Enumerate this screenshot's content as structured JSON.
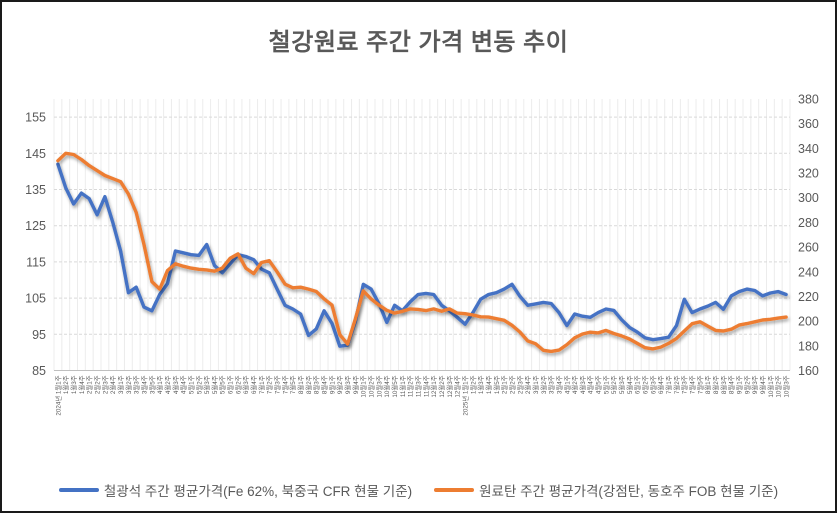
{
  "chart_data": {
    "type": "line",
    "title": "철강원료 주간 가격 변동 추이",
    "grid": true,
    "legend_position": "bottom",
    "left_axis": {
      "min": 85,
      "max": 160,
      "tick_step": 10,
      "ticks": [
        85,
        95,
        105,
        115,
        125,
        135,
        145,
        155
      ]
    },
    "right_axis": {
      "min": 160,
      "max": 380,
      "tick_step": 20,
      "ticks": [
        160,
        180,
        200,
        220,
        240,
        260,
        280,
        300,
        320,
        340,
        360,
        380
      ]
    },
    "categories": [
      "2024년 1월1주",
      "1월2주",
      "1월3주",
      "1월4주",
      "2월1주",
      "2월2주",
      "2월3주",
      "2월4주",
      "3월1주",
      "3월2주",
      "3월3주",
      "3월4주",
      "3월5주",
      "4월1주",
      "4월2주",
      "4월3주",
      "4월4주",
      "5월1주",
      "5월2주",
      "5월3주",
      "5월4주",
      "5월5주",
      "6월1주",
      "6월2주",
      "6월3주",
      "6월4주",
      "7월1주",
      "7월2주",
      "7월3주",
      "7월4주",
      "7월5주",
      "8월1주",
      "8월2주",
      "8월3주",
      "8월4주",
      "9월1주",
      "9월2주",
      "9월3주",
      "9월4주",
      "10월1주",
      "10월2주",
      "10월3주",
      "10월4주",
      "10월5주",
      "11월1주",
      "11월2주",
      "11월3주",
      "11월4주",
      "12월1주",
      "12월2주",
      "12월3주",
      "12월4주",
      "2025년 1월1주",
      "1월2주",
      "1월3주",
      "1월4주",
      "1월5주",
      "2월1주",
      "2월2주",
      "2월3주",
      "2월4주",
      "3월1주",
      "3월2주",
      "3월3주",
      "3월4주",
      "4월1주",
      "4월2주",
      "4월3주",
      "4월4주",
      "4월5주",
      "5월1주",
      "5월2주",
      "5월3주",
      "5월4주",
      "6월1주",
      "6월2주",
      "6월3주",
      "6월4주",
      "7월1주",
      "7월2주",
      "7월3주",
      "7월4주",
      "7월5주",
      "8월1주",
      "8월2주",
      "8월3주",
      "8월4주",
      "9월1주",
      "9월2주",
      "9월3주",
      "9월4주",
      "10월1주",
      "10월2주",
      "10월3주"
    ],
    "series": [
      {
        "name": "철광석 주간 평균가격(Fe 62%, 북중국 CFR 현물 기준)",
        "axis": "left",
        "color": "#4472C4",
        "values": [
          142,
          135.5,
          131,
          134,
          132.5,
          128,
          133,
          126,
          118,
          106.5,
          108,
          102.5,
          101.5,
          106,
          109,
          118,
          117.5,
          117,
          116.8,
          119.8,
          114,
          112,
          114.5,
          117,
          116.5,
          115.6,
          113,
          112,
          107.5,
          103,
          102,
          100.6,
          94.7,
          96.5,
          101.5,
          98,
          91.7,
          92,
          98.5,
          108.8,
          107.5,
          103.5,
          98.3,
          103,
          101.5,
          104,
          106,
          106.3,
          106,
          103,
          101.5,
          99.7,
          97.8,
          101,
          104.7,
          106,
          106.5,
          107.5,
          108.8,
          105.5,
          103,
          103.4,
          103.8,
          103.5,
          101,
          97.4,
          100.6,
          100,
          99.7,
          101,
          102,
          101.6,
          99,
          96.9,
          95.6,
          94,
          93.5,
          93.8,
          94.2,
          97.4,
          104.7,
          101,
          102,
          102.8,
          103.8,
          101.9,
          105.6,
          106.8,
          107.5,
          107.1,
          105.6,
          106.4,
          106.8,
          106
        ]
      },
      {
        "name": "원료탄 주간 평균가격(강점탄, 동호주 FOB 현물 기준)",
        "axis": "right",
        "color": "#ED7D31",
        "values": [
          330,
          336,
          335,
          331,
          326,
          322,
          318,
          315.5,
          313,
          303,
          288,
          262,
          232,
          226,
          241,
          246.5,
          244.5,
          243,
          242,
          241.5,
          240.5,
          243,
          251,
          254.5,
          243,
          238.5,
          247.5,
          249,
          240,
          230,
          227,
          227.5,
          226,
          224,
          218,
          213,
          189,
          181.5,
          202,
          224.5,
          218,
          213,
          208.8,
          206.5,
          208,
          209.9,
          209.5,
          208.5,
          209.9,
          208,
          209.9,
          206.5,
          206,
          205,
          203.5,
          203.3,
          202,
          200.7,
          196.6,
          191.2,
          184,
          181.7,
          176.4,
          175.5,
          176.5,
          181,
          186.5,
          189.6,
          191,
          190.5,
          192.5,
          190,
          188,
          185.5,
          182,
          178.5,
          177.5,
          179,
          182,
          186,
          192,
          197.9,
          199.5,
          196,
          192.5,
          192,
          193.5,
          196.8,
          198,
          199.5,
          200.9,
          201.5,
          202.5,
          203.3
        ]
      }
    ],
    "style": {
      "title_color": "#595959",
      "axis_label_color": "#595959",
      "h_gridline_color": "#D9D9D9",
      "v_gridline_color": "#ECECEC",
      "axis_line_color": "#BFBFBF"
    }
  }
}
